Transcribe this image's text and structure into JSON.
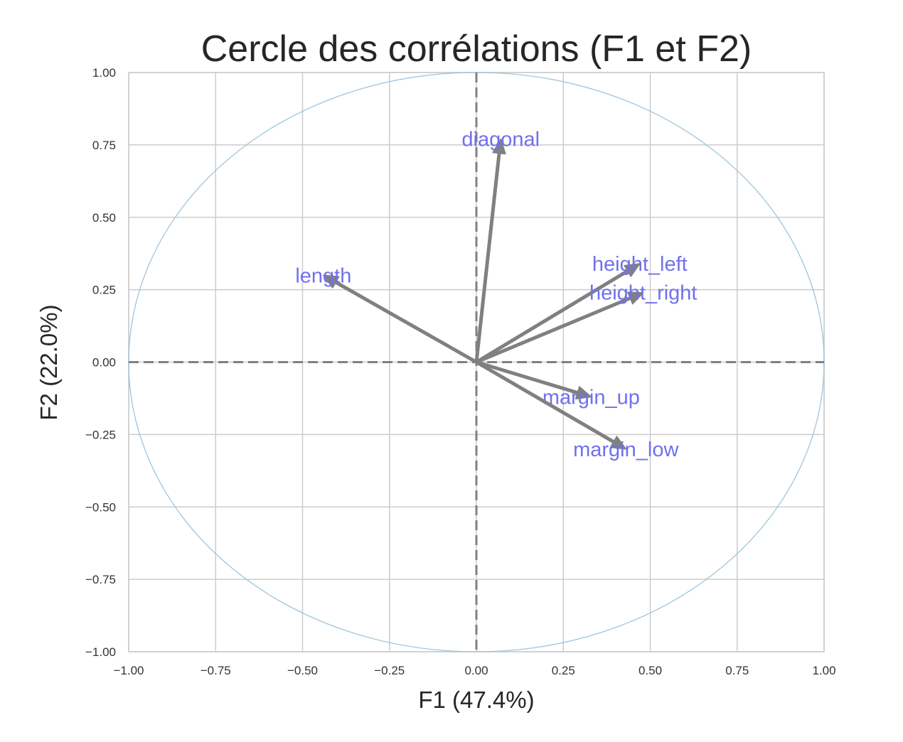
{
  "chart_data": {
    "type": "scatter",
    "subtype": "correlation-circle",
    "title": "Cercle des corrélations (F1 et F2)",
    "xlabel": "F1 (47.4%)",
    "ylabel": "F2 (22.0%)",
    "xlim": [
      -1.0,
      1.0
    ],
    "ylim": [
      -1.0,
      1.0
    ],
    "xticks": [
      "−1.00",
      "−0.75",
      "−0.50",
      "−0.25",
      "0.00",
      "0.25",
      "0.50",
      "0.75",
      "1.00"
    ],
    "yticks": [
      "−1.00",
      "−0.75",
      "−0.50",
      "−0.25",
      "0.00",
      "0.25",
      "0.50",
      "0.75",
      "1.00"
    ],
    "xtick_values": [
      -1.0,
      -0.75,
      -0.5,
      -0.25,
      0.0,
      0.25,
      0.5,
      0.75,
      1.0
    ],
    "ytick_values": [
      -1.0,
      -0.75,
      -0.5,
      -0.25,
      0.0,
      0.25,
      0.5,
      0.75,
      1.0
    ],
    "grid": true,
    "unit_circle": true,
    "reference_lines": [
      "x=0",
      "y=0"
    ],
    "vectors": [
      {
        "name": "diagonal",
        "x": 0.07,
        "y": 0.77
      },
      {
        "name": "length",
        "x": -0.44,
        "y": 0.3
      },
      {
        "name": "height_left",
        "x": 0.47,
        "y": 0.34
      },
      {
        "name": "height_right",
        "x": 0.48,
        "y": 0.24
      },
      {
        "name": "margin_up",
        "x": 0.33,
        "y": -0.12
      },
      {
        "name": "margin_low",
        "x": 0.43,
        "y": -0.3
      }
    ],
    "colors": {
      "arrow": "#808080",
      "label": "#7070ee",
      "circle": "#9fc5dd",
      "grid": "#cccccc",
      "reference": "#808080"
    }
  }
}
